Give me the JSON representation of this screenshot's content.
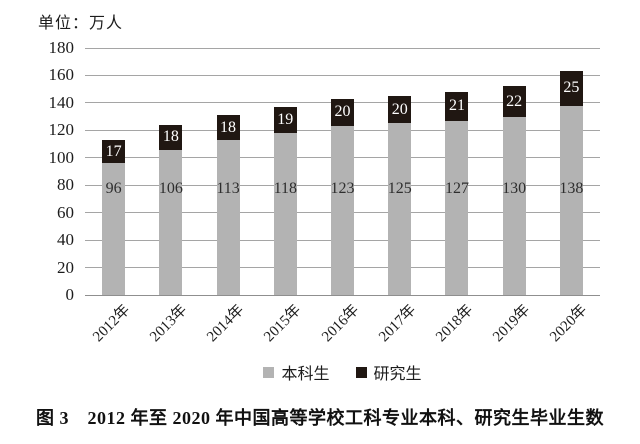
{
  "unit_label": "单位：万人",
  "caption": "图 3　2012 年至 2020 年中国高等学校工科专业本科、研究生毕业生数",
  "chart_data": {
    "type": "bar",
    "stacked": true,
    "title": "",
    "xlabel": "",
    "ylabel": "单位：万人",
    "categories": [
      "2012年",
      "2013年",
      "2014年",
      "2015年",
      "2016年",
      "2017年",
      "2018年",
      "2019年",
      "2020年"
    ],
    "series": [
      {
        "name": "本科生",
        "color": "#b3b3b3",
        "label_color": "#2e2e2e",
        "values": [
          96,
          106,
          113,
          118,
          123,
          125,
          127,
          130,
          138
        ]
      },
      {
        "name": "研究生",
        "color": "#201712",
        "label_color": "#ffffff",
        "values": [
          17,
          18,
          18,
          19,
          20,
          20,
          21,
          22,
          25
        ]
      }
    ],
    "ylim": [
      0,
      180
    ],
    "y_ticks": [
      0,
      20,
      40,
      60,
      80,
      100,
      120,
      140,
      160,
      180
    ],
    "grid": true,
    "grid_color": "#a5a5a5",
    "legend_position": "bottom"
  }
}
